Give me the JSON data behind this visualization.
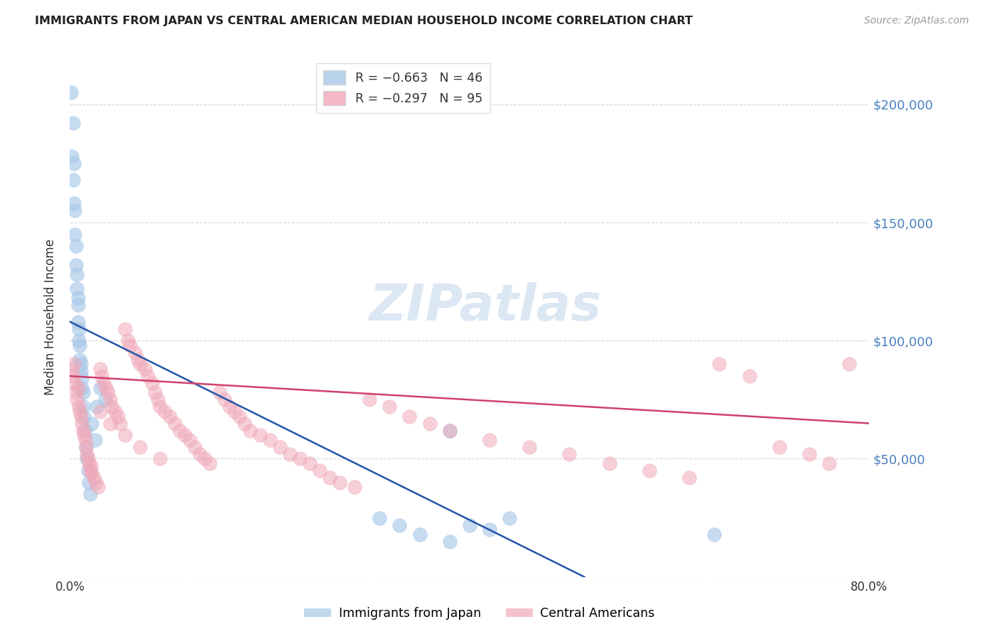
{
  "title": "IMMIGRANTS FROM JAPAN VS CENTRAL AMERICAN MEDIAN HOUSEHOLD INCOME CORRELATION CHART",
  "source": "Source: ZipAtlas.com",
  "ylabel": "Median Household Income",
  "xlim": [
    0.0,
    0.8
  ],
  "ylim": [
    0,
    220000
  ],
  "yticks": [
    0,
    50000,
    100000,
    150000,
    200000
  ],
  "ytick_labels": [
    "",
    "$50,000",
    "$100,000",
    "$150,000",
    "$200,000"
  ],
  "watermark": "ZIPatlas",
  "japan_color": "#a8c8e8",
  "central_color": "#f0a8b8",
  "japan_line_color": "#2255aa",
  "central_line_color": "#d04070",
  "japan_line_x": [
    0.0,
    0.515
  ],
  "japan_line_y": [
    108000,
    0
  ],
  "central_line_x": [
    0.0,
    0.8
  ],
  "central_line_y": [
    85000,
    65000
  ],
  "japan_x": [
    0.001,
    0.002,
    0.003,
    0.003,
    0.004,
    0.004,
    0.005,
    0.005,
    0.006,
    0.006,
    0.007,
    0.007,
    0.008,
    0.008,
    0.008,
    0.009,
    0.009,
    0.01,
    0.01,
    0.011,
    0.011,
    0.012,
    0.012,
    0.013,
    0.013,
    0.014,
    0.015,
    0.016,
    0.017,
    0.018,
    0.019,
    0.02,
    0.022,
    0.025,
    0.027,
    0.03,
    0.035,
    0.31,
    0.33,
    0.35,
    0.38,
    0.4,
    0.42,
    0.44,
    0.645,
    0.38
  ],
  "japan_y": [
    205000,
    178000,
    192000,
    168000,
    175000,
    158000,
    155000,
    145000,
    140000,
    132000,
    128000,
    122000,
    118000,
    115000,
    108000,
    105000,
    100000,
    98000,
    92000,
    90000,
    87000,
    84000,
    80000,
    78000,
    72000,
    68000,
    62000,
    55000,
    50000,
    45000,
    40000,
    35000,
    65000,
    58000,
    72000,
    80000,
    75000,
    25000,
    22000,
    18000,
    15000,
    22000,
    20000,
    25000,
    18000,
    62000
  ],
  "central_x": [
    0.002,
    0.003,
    0.004,
    0.005,
    0.006,
    0.007,
    0.008,
    0.009,
    0.01,
    0.011,
    0.012,
    0.013,
    0.014,
    0.015,
    0.016,
    0.017,
    0.018,
    0.019,
    0.02,
    0.021,
    0.022,
    0.024,
    0.026,
    0.028,
    0.03,
    0.032,
    0.034,
    0.036,
    0.038,
    0.04,
    0.042,
    0.045,
    0.048,
    0.05,
    0.055,
    0.058,
    0.06,
    0.065,
    0.068,
    0.07,
    0.075,
    0.078,
    0.082,
    0.085,
    0.088,
    0.09,
    0.095,
    0.1,
    0.105,
    0.11,
    0.115,
    0.12,
    0.125,
    0.13,
    0.135,
    0.14,
    0.15,
    0.155,
    0.16,
    0.165,
    0.17,
    0.175,
    0.18,
    0.19,
    0.2,
    0.21,
    0.22,
    0.23,
    0.24,
    0.25,
    0.26,
    0.27,
    0.285,
    0.3,
    0.32,
    0.34,
    0.36,
    0.38,
    0.42,
    0.46,
    0.5,
    0.54,
    0.58,
    0.62,
    0.65,
    0.68,
    0.71,
    0.74,
    0.76,
    0.78,
    0.03,
    0.04,
    0.055,
    0.07,
    0.09
  ],
  "central_y": [
    88000,
    85000,
    90000,
    82000,
    78000,
    75000,
    80000,
    72000,
    70000,
    68000,
    65000,
    62000,
    60000,
    58000,
    55000,
    52000,
    50000,
    48000,
    45000,
    47000,
    44000,
    42000,
    40000,
    38000,
    88000,
    85000,
    82000,
    80000,
    78000,
    75000,
    72000,
    70000,
    68000,
    65000,
    105000,
    100000,
    98000,
    95000,
    92000,
    90000,
    88000,
    85000,
    82000,
    78000,
    75000,
    72000,
    70000,
    68000,
    65000,
    62000,
    60000,
    58000,
    55000,
    52000,
    50000,
    48000,
    78000,
    75000,
    72000,
    70000,
    68000,
    65000,
    62000,
    60000,
    58000,
    55000,
    52000,
    50000,
    48000,
    45000,
    42000,
    40000,
    38000,
    75000,
    72000,
    68000,
    65000,
    62000,
    58000,
    55000,
    52000,
    48000,
    45000,
    42000,
    90000,
    85000,
    55000,
    52000,
    48000,
    90000,
    70000,
    65000,
    60000,
    55000,
    50000
  ]
}
